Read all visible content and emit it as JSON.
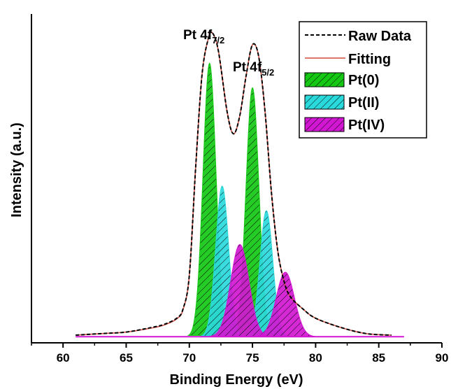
{
  "chart_data": {
    "type": "area",
    "xlabel": "Binding Energy (eV)",
    "ylabel": "Intensity (a.u.)",
    "xlim": [
      57.5,
      90
    ],
    "ylim": [
      -0.02,
      1.05
    ],
    "xticks": [
      60,
      65,
      70,
      75,
      80,
      85,
      90
    ],
    "yticks": [],
    "grid": false,
    "legend_position": "top-right",
    "baseline": 0.0,
    "series": [
      {
        "name": "Raw Data",
        "kind": "line",
        "style": "dashed",
        "color": "#000000",
        "x": [
          61,
          63,
          65,
          67,
          68,
          69,
          69.5,
          70,
          70.5,
          71,
          71.5,
          71.8,
          72.3,
          73,
          73.5,
          74,
          74.5,
          75,
          75.5,
          76,
          76.5,
          77,
          77.5,
          78,
          79,
          80,
          82,
          84,
          86
        ],
        "y": [
          0.005,
          0.01,
          0.015,
          0.03,
          0.04,
          0.06,
          0.09,
          0.2,
          0.55,
          0.85,
          0.97,
          0.99,
          0.93,
          0.73,
          0.66,
          0.72,
          0.85,
          0.95,
          0.91,
          0.73,
          0.47,
          0.28,
          0.18,
          0.13,
          0.09,
          0.06,
          0.03,
          0.01,
          0.005
        ]
      },
      {
        "name": "Fitting",
        "kind": "line",
        "style": "solid",
        "color": "#d04a3e",
        "x": [
          61,
          63,
          65,
          67,
          68,
          69,
          69.5,
          70,
          70.5,
          71,
          71.5,
          71.8,
          72.3,
          73,
          73.5,
          74,
          74.5,
          75,
          75.5,
          76,
          76.5,
          77,
          77.5,
          78,
          79,
          80,
          82,
          84,
          86
        ],
        "y": [
          0.005,
          0.01,
          0.015,
          0.028,
          0.038,
          0.058,
          0.088,
          0.2,
          0.55,
          0.85,
          0.97,
          0.99,
          0.93,
          0.73,
          0.66,
          0.72,
          0.85,
          0.95,
          0.91,
          0.73,
          0.47,
          0.28,
          0.18,
          0.13,
          0.09,
          0.06,
          0.03,
          0.01,
          0.005
        ]
      },
      {
        "name": "Pt(0)",
        "kind": "peaks",
        "color": "#14c814",
        "hatch": true,
        "peaks": [
          {
            "center": 71.6,
            "height": 0.89,
            "fwhm": 1.2
          },
          {
            "center": 75.0,
            "height": 0.81,
            "fwhm": 1.2
          }
        ]
      },
      {
        "name": "Pt(II)",
        "kind": "peaks",
        "color": "#2ad9dc",
        "hatch": true,
        "peaks": [
          {
            "center": 72.6,
            "height": 0.49,
            "fwhm": 1.2
          },
          {
            "center": 76.1,
            "height": 0.41,
            "fwhm": 1.2
          }
        ]
      },
      {
        "name": "Pt(IV)",
        "kind": "peaks",
        "color": "#d217d2",
        "hatch": true,
        "peaks": [
          {
            "center": 74.0,
            "height": 0.3,
            "fwhm": 1.7
          },
          {
            "center": 77.6,
            "height": 0.21,
            "fwhm": 1.7
          }
        ]
      }
    ],
    "baseline_segment": {
      "x": [
        61,
        87
      ],
      "color": "#d217d2"
    },
    "annotations": [
      {
        "text": "Pt 4f",
        "sub": "7/2",
        "x": 71.3,
        "y": 1.15
      },
      {
        "text": "Pt 4f",
        "sub": "5/2",
        "x": 75.2,
        "y": 1.0
      }
    ]
  }
}
